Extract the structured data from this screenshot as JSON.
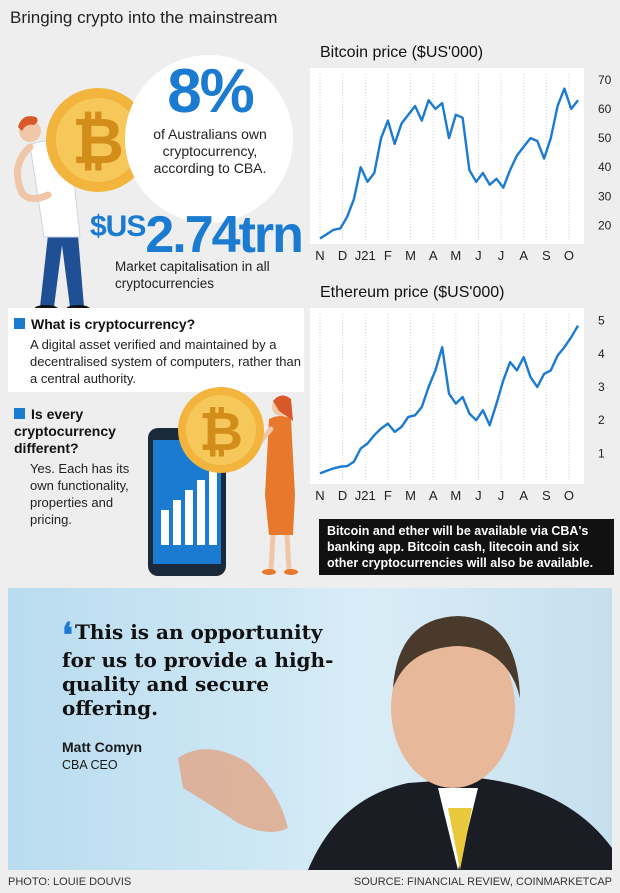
{
  "title": "Bringing crypto into the mainstream",
  "stat": {
    "value": "8%",
    "description": "of Australians own cryptocurrency, according to CBA."
  },
  "market_cap": {
    "currency": "$US",
    "value": "2.74trn",
    "description": "Market capitalisation in all cryptocurrencies"
  },
  "faq": [
    {
      "question": "What is cryptocurrency?",
      "answer": "A digital asset verified and maintained by a decentralised system of computers, rather than a central authority."
    },
    {
      "question": "Is every cryptocurrency different?",
      "answer": "Yes. Each has its own functionality, properties and pricing."
    }
  ],
  "note": "Bitcoin and ether will be available via CBA's banking app. Bitcoin cash, litecoin and six other cryptocurrencies will also be available.",
  "quote": {
    "text": "This is an opportunity for us to provide a high-quality and secure offering.",
    "name": "Matt Comyn",
    "role": "CBA CEO"
  },
  "photo_credit": "PHOTO:  LOUIE DOUVIS",
  "source": "SOURCE: FINANCIAL REVIEW, COINMARKETCAP",
  "colors": {
    "accent": "#1a7bd0",
    "coin": "#f2b43c",
    "note_bg": "#111111"
  },
  "icons": [
    "bitcoin-coin-icon",
    "smartphone-bar-chart-icon"
  ],
  "chart_data": [
    {
      "type": "line",
      "title": "Bitcoin price ($US'000)",
      "x_labels": [
        "N",
        "D",
        "J21",
        "F",
        "M",
        "A",
        "M",
        "J",
        "J",
        "A",
        "S",
        "O"
      ],
      "x": [
        0,
        0.3,
        0.6,
        0.9,
        1.2,
        1.5,
        1.8,
        2.1,
        2.4,
        2.7,
        3.0,
        3.3,
        3.6,
        3.9,
        4.2,
        4.5,
        4.8,
        5.1,
        5.4,
        5.7,
        6.0,
        6.3,
        6.6,
        6.9,
        7.2,
        7.5,
        7.8,
        8.1,
        8.4,
        8.7,
        9.0,
        9.3,
        9.6,
        9.9,
        10.2,
        10.5,
        10.8,
        11.1,
        11.4
      ],
      "y": [
        15.5,
        17,
        18.5,
        19,
        23,
        29,
        40,
        35,
        38,
        50,
        56,
        48,
        55,
        58,
        61,
        56,
        63,
        60,
        62,
        50,
        58,
        57,
        39,
        35,
        38,
        34,
        36,
        33,
        39,
        44,
        47,
        50,
        49,
        43,
        50,
        61,
        67,
        60,
        63
      ],
      "ylim": [
        15,
        72
      ],
      "y_ticks": [
        20,
        30,
        40,
        50,
        60,
        70
      ],
      "color": "#1a7bd0",
      "grid": "vertical"
    },
    {
      "type": "line",
      "title": "Ethereum price ($US'000)",
      "x_labels": [
        "N",
        "D",
        "J21",
        "F",
        "M",
        "A",
        "M",
        "J",
        "J",
        "A",
        "S",
        "O"
      ],
      "x": [
        0,
        0.3,
        0.6,
        0.9,
        1.2,
        1.5,
        1.8,
        2.1,
        2.4,
        2.7,
        3.0,
        3.3,
        3.6,
        3.9,
        4.2,
        4.5,
        4.8,
        5.1,
        5.4,
        5.7,
        6.0,
        6.3,
        6.6,
        6.9,
        7.2,
        7.5,
        7.8,
        8.1,
        8.4,
        8.7,
        9.0,
        9.3,
        9.6,
        9.9,
        10.2,
        10.5,
        10.8,
        11.1,
        11.4
      ],
      "y": [
        0.4,
        0.48,
        0.55,
        0.6,
        0.62,
        0.75,
        1.15,
        1.3,
        1.55,
        1.75,
        1.9,
        1.65,
        1.8,
        2.1,
        2.15,
        2.4,
        3.0,
        3.5,
        4.2,
        2.8,
        2.5,
        2.7,
        2.2,
        2.0,
        2.3,
        1.85,
        2.5,
        3.2,
        3.75,
        3.5,
        3.9,
        3.3,
        3.0,
        3.4,
        3.5,
        3.95,
        4.2,
        4.5,
        4.85
      ],
      "ylim": [
        0.2,
        5.2
      ],
      "y_ticks": [
        1,
        2,
        3,
        4,
        5
      ],
      "color": "#1a7bd0",
      "grid": "vertical"
    }
  ]
}
